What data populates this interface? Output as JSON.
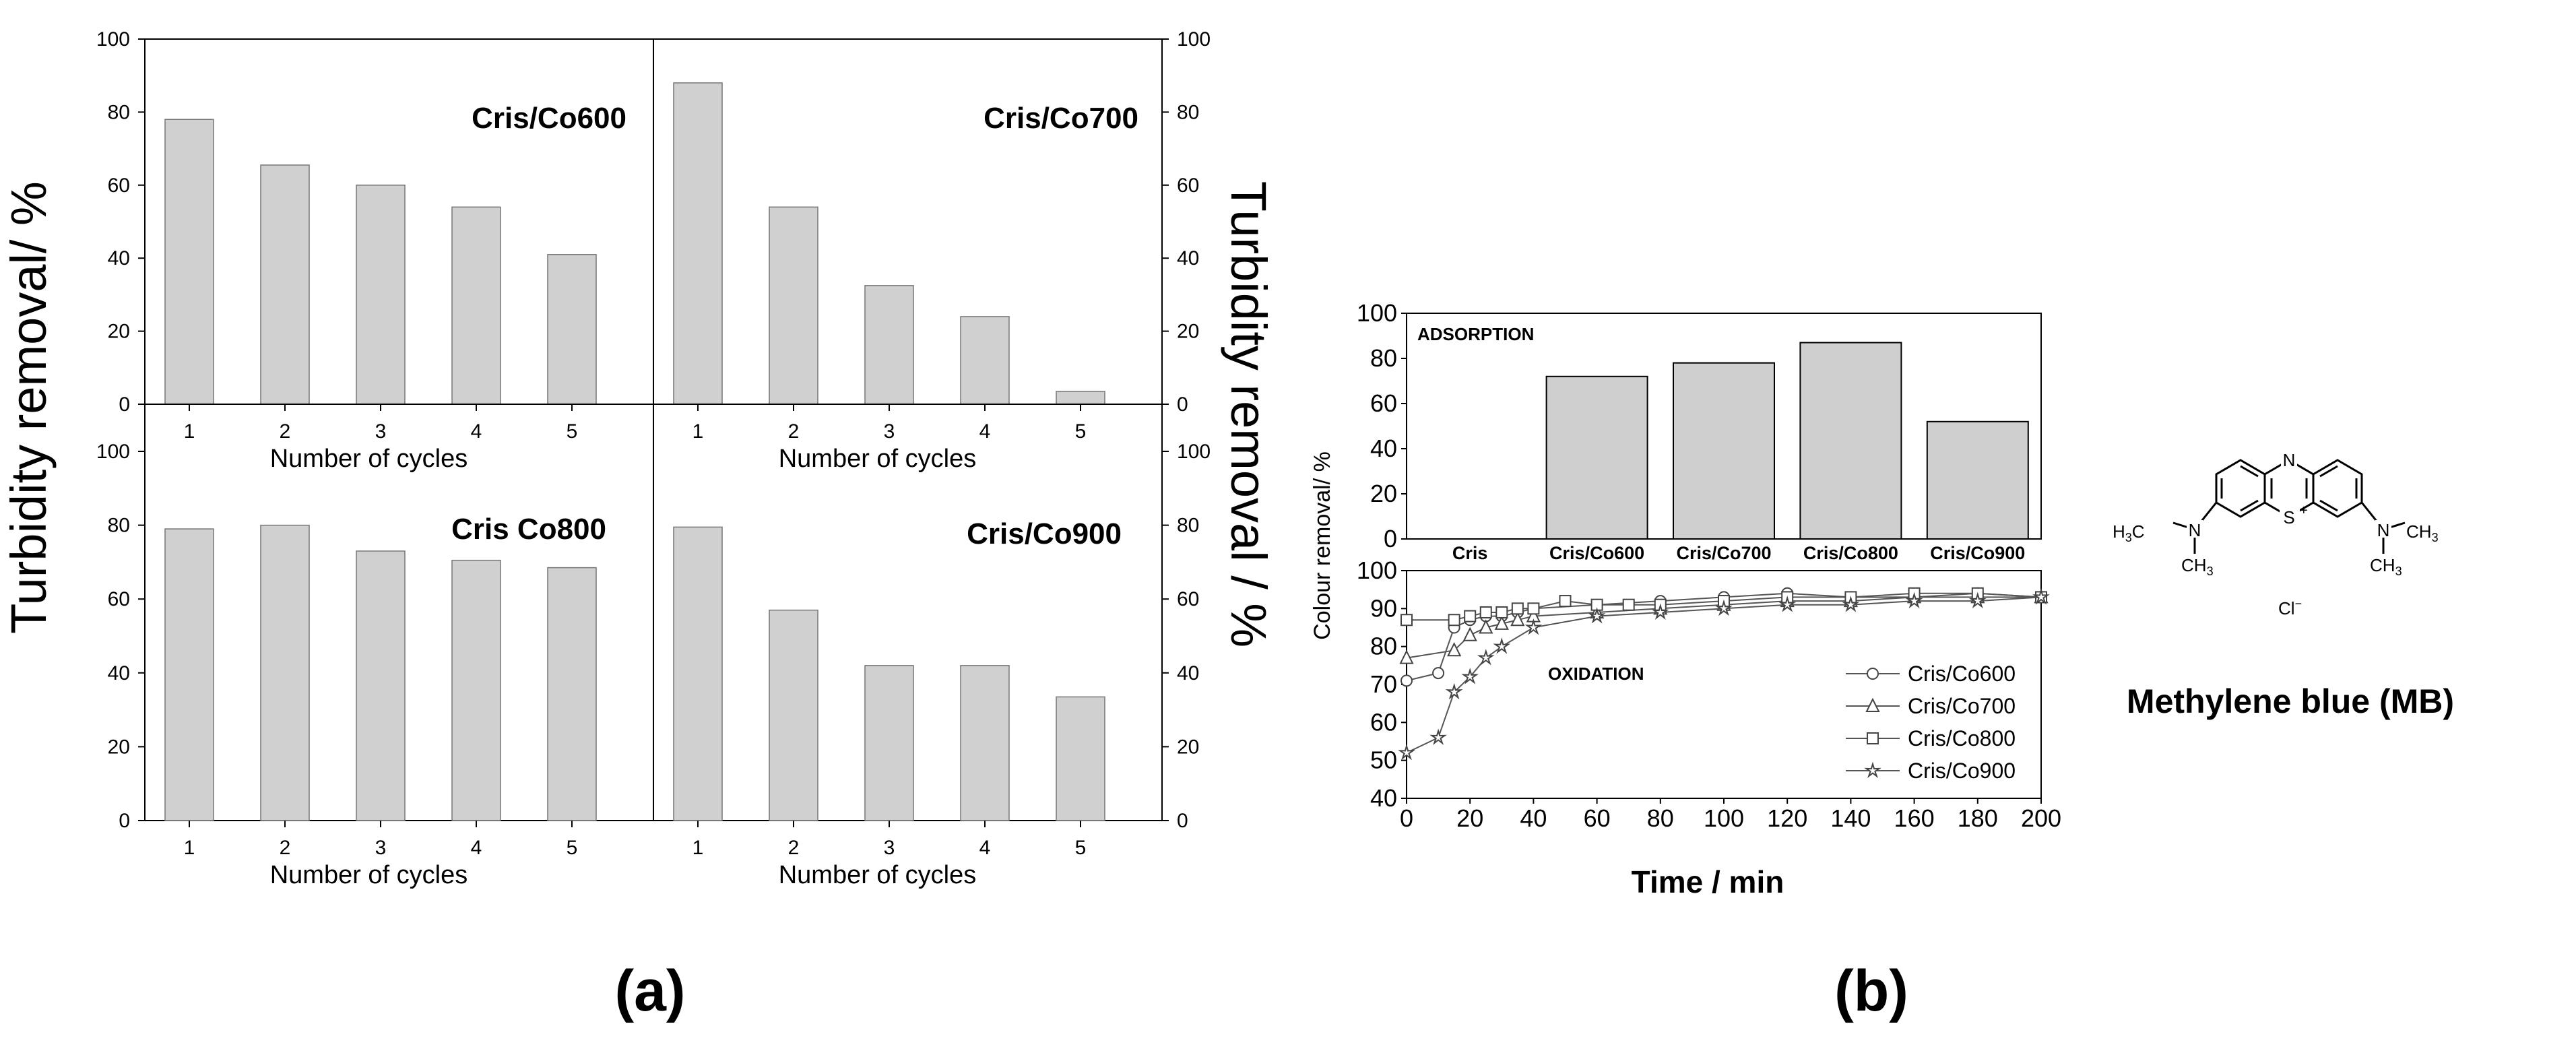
{
  "panel_labels": {
    "a": "(a)",
    "b": "(b)"
  },
  "panel_a": {
    "left_ylabel": "Turbidity removal/ %",
    "right_ylabel": "Turbidity removal / %",
    "xlabel": "Number of cycles"
  },
  "panel_b": {
    "ylabel": "Colour removal/ %",
    "xlabel": "Time / min"
  },
  "molecule": {
    "name": "Methylene blue (MB)",
    "atoms": {
      "n_top": "N",
      "s_ring": "S",
      "s_charge": "+",
      "n_left": "N",
      "n_right": "N",
      "h3c": "H",
      "h3c_sub": "3",
      "h3c_c": "C",
      "ch3_c": "CH",
      "ch3_sub": "3",
      "cl": "Cl",
      "cl_charge": "−"
    }
  },
  "chart_data": [
    {
      "id": "cris_co600",
      "type": "bar",
      "title": "Cris/Co600",
      "xlabel": "Number of cycles",
      "ylabel": "Turbidity removal/ %",
      "categories": [
        "1",
        "2",
        "3",
        "4",
        "5"
      ],
      "values": [
        78,
        65.5,
        60,
        54,
        41
      ],
      "ylim": [
        0,
        100
      ],
      "yticks": [
        0,
        20,
        40,
        60,
        80,
        100
      ],
      "bar_color": "#d0d0d0"
    },
    {
      "id": "cris_co700",
      "type": "bar",
      "title": "Cris/Co700",
      "xlabel": "Number of cycles",
      "ylabel": "Turbidity removal / %",
      "categories": [
        "1",
        "2",
        "3",
        "4",
        "5"
      ],
      "values": [
        88,
        54,
        32.5,
        24,
        3.5
      ],
      "ylim": [
        0,
        100
      ],
      "yticks": [
        0,
        20,
        40,
        60,
        80,
        100
      ],
      "bar_color": "#d0d0d0"
    },
    {
      "id": "cris_co800",
      "type": "bar",
      "title": "Cris Co800",
      "xlabel": "Number of cycles",
      "ylabel": "Turbidity removal/ %",
      "categories": [
        "1",
        "2",
        "3",
        "4",
        "5"
      ],
      "values": [
        79,
        80,
        73,
        70.5,
        68.5
      ],
      "ylim": [
        0,
        100
      ],
      "yticks": [
        0,
        20,
        40,
        60,
        80,
        100
      ],
      "bar_color": "#d0d0d0"
    },
    {
      "id": "cris_co900",
      "type": "bar",
      "title": "Cris/Co900",
      "xlabel": "Number of cycles",
      "ylabel": "Turbidity removal / %",
      "categories": [
        "1",
        "2",
        "3",
        "4",
        "5"
      ],
      "values": [
        79.5,
        57,
        42,
        42,
        33.5
      ],
      "ylim": [
        0,
        100
      ],
      "yticks": [
        0,
        20,
        40,
        60,
        80,
        100
      ],
      "bar_color": "#d0d0d0"
    },
    {
      "id": "adsorption",
      "type": "bar",
      "title": "ADSORPTION",
      "ylabel": "Colour removal/ %",
      "categories": [
        "Cris",
        "Cris/Co600",
        "Cris/Co700",
        "Cris/Co800",
        "Cris/Co900"
      ],
      "values": [
        0,
        72,
        78,
        87,
        52
      ],
      "ylim": [
        0,
        100
      ],
      "yticks": [
        0,
        20,
        40,
        60,
        80,
        100
      ],
      "bar_color": "#cfcfcf"
    },
    {
      "id": "oxidation",
      "type": "line",
      "title": "OXIDATION",
      "xlabel": "Time / min",
      "ylabel": "Colour removal/ %",
      "xlim": [
        0,
        200
      ],
      "ylim": [
        40,
        100
      ],
      "xticks": [
        0,
        20,
        40,
        60,
        80,
        100,
        120,
        140,
        160,
        180,
        200
      ],
      "yticks": [
        40,
        50,
        60,
        70,
        80,
        90,
        100
      ],
      "legend_position": "bottom-right",
      "series": [
        {
          "name": "Cris/Co600",
          "marker": "circle",
          "x": [
            0,
            10,
            15,
            20,
            25,
            30,
            35,
            40,
            60,
            80,
            100,
            120,
            140,
            160,
            180,
            200
          ],
          "y": [
            71,
            73,
            85,
            87,
            88,
            88,
            89,
            90,
            91,
            92,
            93,
            94,
            93,
            93,
            94,
            93
          ]
        },
        {
          "name": "Cris/Co700",
          "marker": "triangle",
          "x": [
            0,
            15,
            20,
            25,
            30,
            35,
            40,
            60,
            80,
            100,
            120,
            140,
            160,
            180,
            200
          ],
          "y": [
            77,
            79,
            83,
            85,
            86,
            87,
            88,
            89,
            90,
            91,
            92,
            92,
            93,
            93,
            93
          ]
        },
        {
          "name": "Cris/Co800",
          "marker": "square",
          "x": [
            0,
            15,
            20,
            25,
            30,
            35,
            40,
            50,
            60,
            70,
            80,
            100,
            120,
            140,
            160,
            180,
            200
          ],
          "y": [
            87,
            87,
            88,
            89,
            89,
            90,
            90,
            92,
            91,
            91,
            91,
            92,
            93,
            93,
            94,
            94,
            93
          ]
        },
        {
          "name": "Cris/Co900",
          "marker": "star",
          "x": [
            0,
            10,
            15,
            20,
            25,
            30,
            40,
            60,
            80,
            100,
            120,
            140,
            160,
            180,
            200
          ],
          "y": [
            52,
            56,
            68,
            72,
            77,
            80,
            85,
            88,
            89,
            90,
            91,
            91,
            92,
            92,
            93
          ]
        }
      ]
    }
  ]
}
